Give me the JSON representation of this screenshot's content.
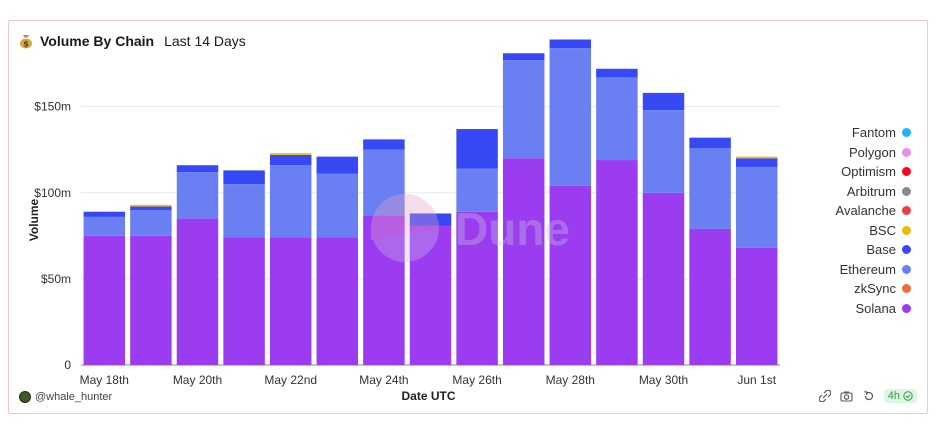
{
  "header": {
    "title": "Volume By Chain",
    "subtitle": "Last 14 Days",
    "icon": "money-bag-icon"
  },
  "watermark": "Dune",
  "footer": {
    "username": "@whale_hunter",
    "refresh_label": "4h",
    "icons": [
      "share-icon",
      "camera-icon",
      "refresh-icon",
      "check-icon"
    ]
  },
  "chart_data": {
    "type": "bar",
    "stacked": true,
    "xlabel": "Date UTC",
    "ylabel": "Volume",
    "ylim": [
      0,
      180
    ],
    "y_unit": "m",
    "yticks": [
      {
        "value": 0,
        "label": "0"
      },
      {
        "value": 50,
        "label": "$50m"
      },
      {
        "value": 100,
        "label": "$100m"
      },
      {
        "value": 150,
        "label": "$150m"
      }
    ],
    "categories": [
      "May 18th",
      "May 19th",
      "May 20th",
      "May 21st",
      "May 22nd",
      "May 23rd",
      "May 24th",
      "May 25th",
      "May 26th",
      "May 27th",
      "May 28th",
      "May 29th",
      "May 30th",
      "May 31st",
      "Jun 1st"
    ],
    "tick_labels": [
      "May 18th",
      "",
      "May 20th",
      "",
      "May 22nd",
      "",
      "May 24th",
      "",
      "May 26th",
      "",
      "May 28th",
      "",
      "May 30th",
      "",
      "Jun 1st"
    ],
    "grid": true,
    "legend_position": "right",
    "series": [
      {
        "name": "Solana",
        "color": "#9b3cf0",
        "values": [
          75,
          75,
          85,
          74,
          74,
          74,
          87,
          81,
          89,
          120,
          104,
          119,
          100,
          79,
          68
        ]
      },
      {
        "name": "zkSync",
        "color": "#f06a3c",
        "values": [
          0,
          0,
          0,
          0,
          0,
          0,
          0,
          0,
          0,
          0,
          0,
          0,
          0,
          0,
          0
        ]
      },
      {
        "name": "Ethereum",
        "color": "#6a7ff2",
        "values": [
          11,
          15,
          27,
          31,
          42,
          37,
          38,
          0,
          25,
          57,
          80,
          48,
          48,
          47,
          47
        ]
      },
      {
        "name": "Base",
        "color": "#3649f5",
        "values": [
          3,
          2,
          4,
          8,
          6,
          10,
          6,
          7,
          23,
          4,
          5,
          5,
          10,
          6,
          5
        ]
      },
      {
        "name": "BSC",
        "color": "#f0b90b",
        "values": [
          0,
          1,
          0,
          0,
          1,
          0,
          0,
          0,
          0,
          0,
          0,
          0,
          0,
          0,
          1
        ]
      },
      {
        "name": "Avalanche",
        "color": "#e84142",
        "values": [
          0,
          0,
          0,
          0,
          0,
          0,
          0,
          0,
          0,
          0,
          0,
          0,
          0,
          0,
          0
        ]
      },
      {
        "name": "Arbitrum",
        "color": "#8a8a8a",
        "values": [
          0,
          0,
          0,
          0,
          0,
          0,
          0,
          0,
          0,
          0,
          0,
          0,
          0,
          0,
          0
        ]
      },
      {
        "name": "Optimism",
        "color": "#ff0420",
        "values": [
          0,
          0,
          0,
          0,
          0,
          0,
          0,
          0,
          0,
          0,
          0,
          0,
          0,
          0,
          0
        ]
      },
      {
        "name": "Polygon",
        "color": "#e88ee8",
        "values": [
          0,
          0,
          0,
          0,
          0,
          0,
          0,
          0,
          0,
          0,
          0,
          0,
          0,
          0,
          0
        ]
      },
      {
        "name": "Fantom",
        "color": "#1fb6f0",
        "values": [
          0,
          0,
          0,
          0,
          0,
          0,
          0,
          0,
          0,
          0,
          0,
          0,
          0,
          0,
          0
        ]
      }
    ],
    "legend_order": [
      "Fantom",
      "Polygon",
      "Optimism",
      "Arbitrum",
      "Avalanche",
      "BSC",
      "Base",
      "Ethereum",
      "zkSync",
      "Solana"
    ]
  }
}
